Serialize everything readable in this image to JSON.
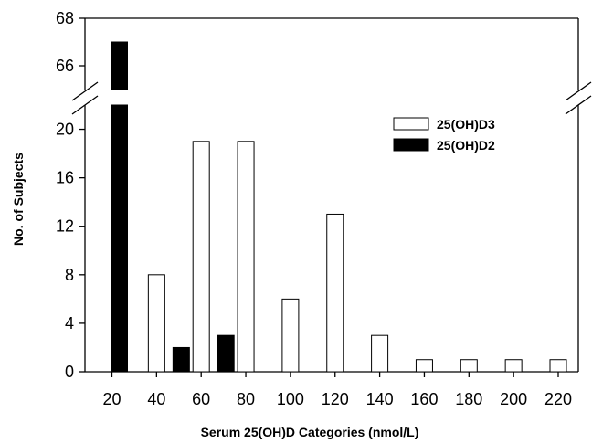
{
  "chart_data": {
    "type": "bar",
    "xlabel": "Serum 25(OH)D Categories (nmol/L)",
    "ylabel": "No. of Subjects",
    "x_tick_labels": [
      "20",
      "40",
      "60",
      "80",
      "100",
      "120",
      "140",
      "160",
      "180",
      "200",
      "220"
    ],
    "y_tick_labels_lower": [
      "0",
      "4",
      "8",
      "12",
      "16",
      "20"
    ],
    "y_tick_labels_upper": [
      "66",
      "68"
    ],
    "ylim_lower": [
      0,
      22
    ],
    "ylim_upper": [
      65,
      68
    ],
    "axis_break": true,
    "legend_position": "top-right",
    "series": [
      {
        "name": "25(OH)D3",
        "fill": "#ffffff",
        "points": [
          {
            "x": 40,
            "value": 8
          },
          {
            "x": 60,
            "value": 19
          },
          {
            "x": 80,
            "value": 19
          },
          {
            "x": 100,
            "value": 6
          },
          {
            "x": 120,
            "value": 13
          },
          {
            "x": 140,
            "value": 3
          },
          {
            "x": 160,
            "value": 1
          },
          {
            "x": 180,
            "value": 1
          },
          {
            "x": 200,
            "value": 1
          },
          {
            "x": 220,
            "value": 1
          }
        ]
      },
      {
        "name": "25(OH)D2",
        "fill": "#000000",
        "points": [
          {
            "x": 20,
            "value": 67
          },
          {
            "x": 40,
            "value": 2
          },
          {
            "x": 60,
            "value": 3
          }
        ]
      }
    ]
  }
}
